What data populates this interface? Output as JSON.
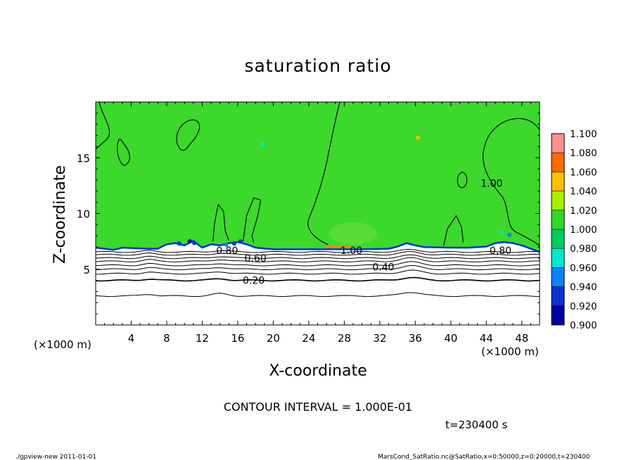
{
  "chart_data": {
    "type": "heatmap",
    "title": "saturation ratio",
    "xlabel": "X-coordinate",
    "ylabel": "Z-coordinate",
    "x_unit_label": "(×1000 m)",
    "y_unit_label": "(×1000 m)",
    "xlim": [
      0,
      50
    ],
    "ylim": [
      0,
      20
    ],
    "x_ticks": [
      4,
      8,
      12,
      16,
      20,
      24,
      28,
      32,
      36,
      40,
      44,
      48
    ],
    "y_ticks": [
      5,
      10,
      15
    ],
    "contour_interval_text": "CONTOUR INTERVAL = 1.000E-01",
    "time_text": "t=230400 s",
    "contour_labels": [
      {
        "text": "0.20",
        "x": 17.8,
        "z": 4.0
      },
      {
        "text": "0.40",
        "x": 32.4,
        "z": 5.2
      },
      {
        "text": "0.60",
        "x": 18.0,
        "z": 6.0
      },
      {
        "text": "0.80",
        "x": 14.8,
        "z": 6.7
      },
      {
        "text": "1.00",
        "x": 28.8,
        "z": 6.7
      },
      {
        "text": "0.80",
        "x": 45.6,
        "z": 6.7
      },
      {
        "text": "1.00",
        "x": 44.6,
        "z": 12.7
      }
    ],
    "colorbar": {
      "levels": [
        "1.100",
        "1.080",
        "1.060",
        "1.040",
        "1.020",
        "1.000",
        "0.980",
        "0.960",
        "0.940",
        "0.920",
        "0.900"
      ],
      "colors": [
        "#ff8e8e",
        "#ef2020",
        "#ff6a00",
        "#ffc000",
        "#a8f000",
        "#30d830",
        "#00cc60",
        "#00e8d0",
        "#1080ff",
        "#1030d0",
        "#0000a0",
        "#7000b0"
      ]
    },
    "field_colors": {
      "saturated": "#3cd82c",
      "subsaturated": "#ffffff",
      "edge": "#1028ff"
    }
  },
  "footer": {
    "left": "./gpview-new   2011-01-01",
    "right": "MarsCond_SatRatio.nc@SatRatio,x=0:50000,z=0:20000,t=230400"
  }
}
